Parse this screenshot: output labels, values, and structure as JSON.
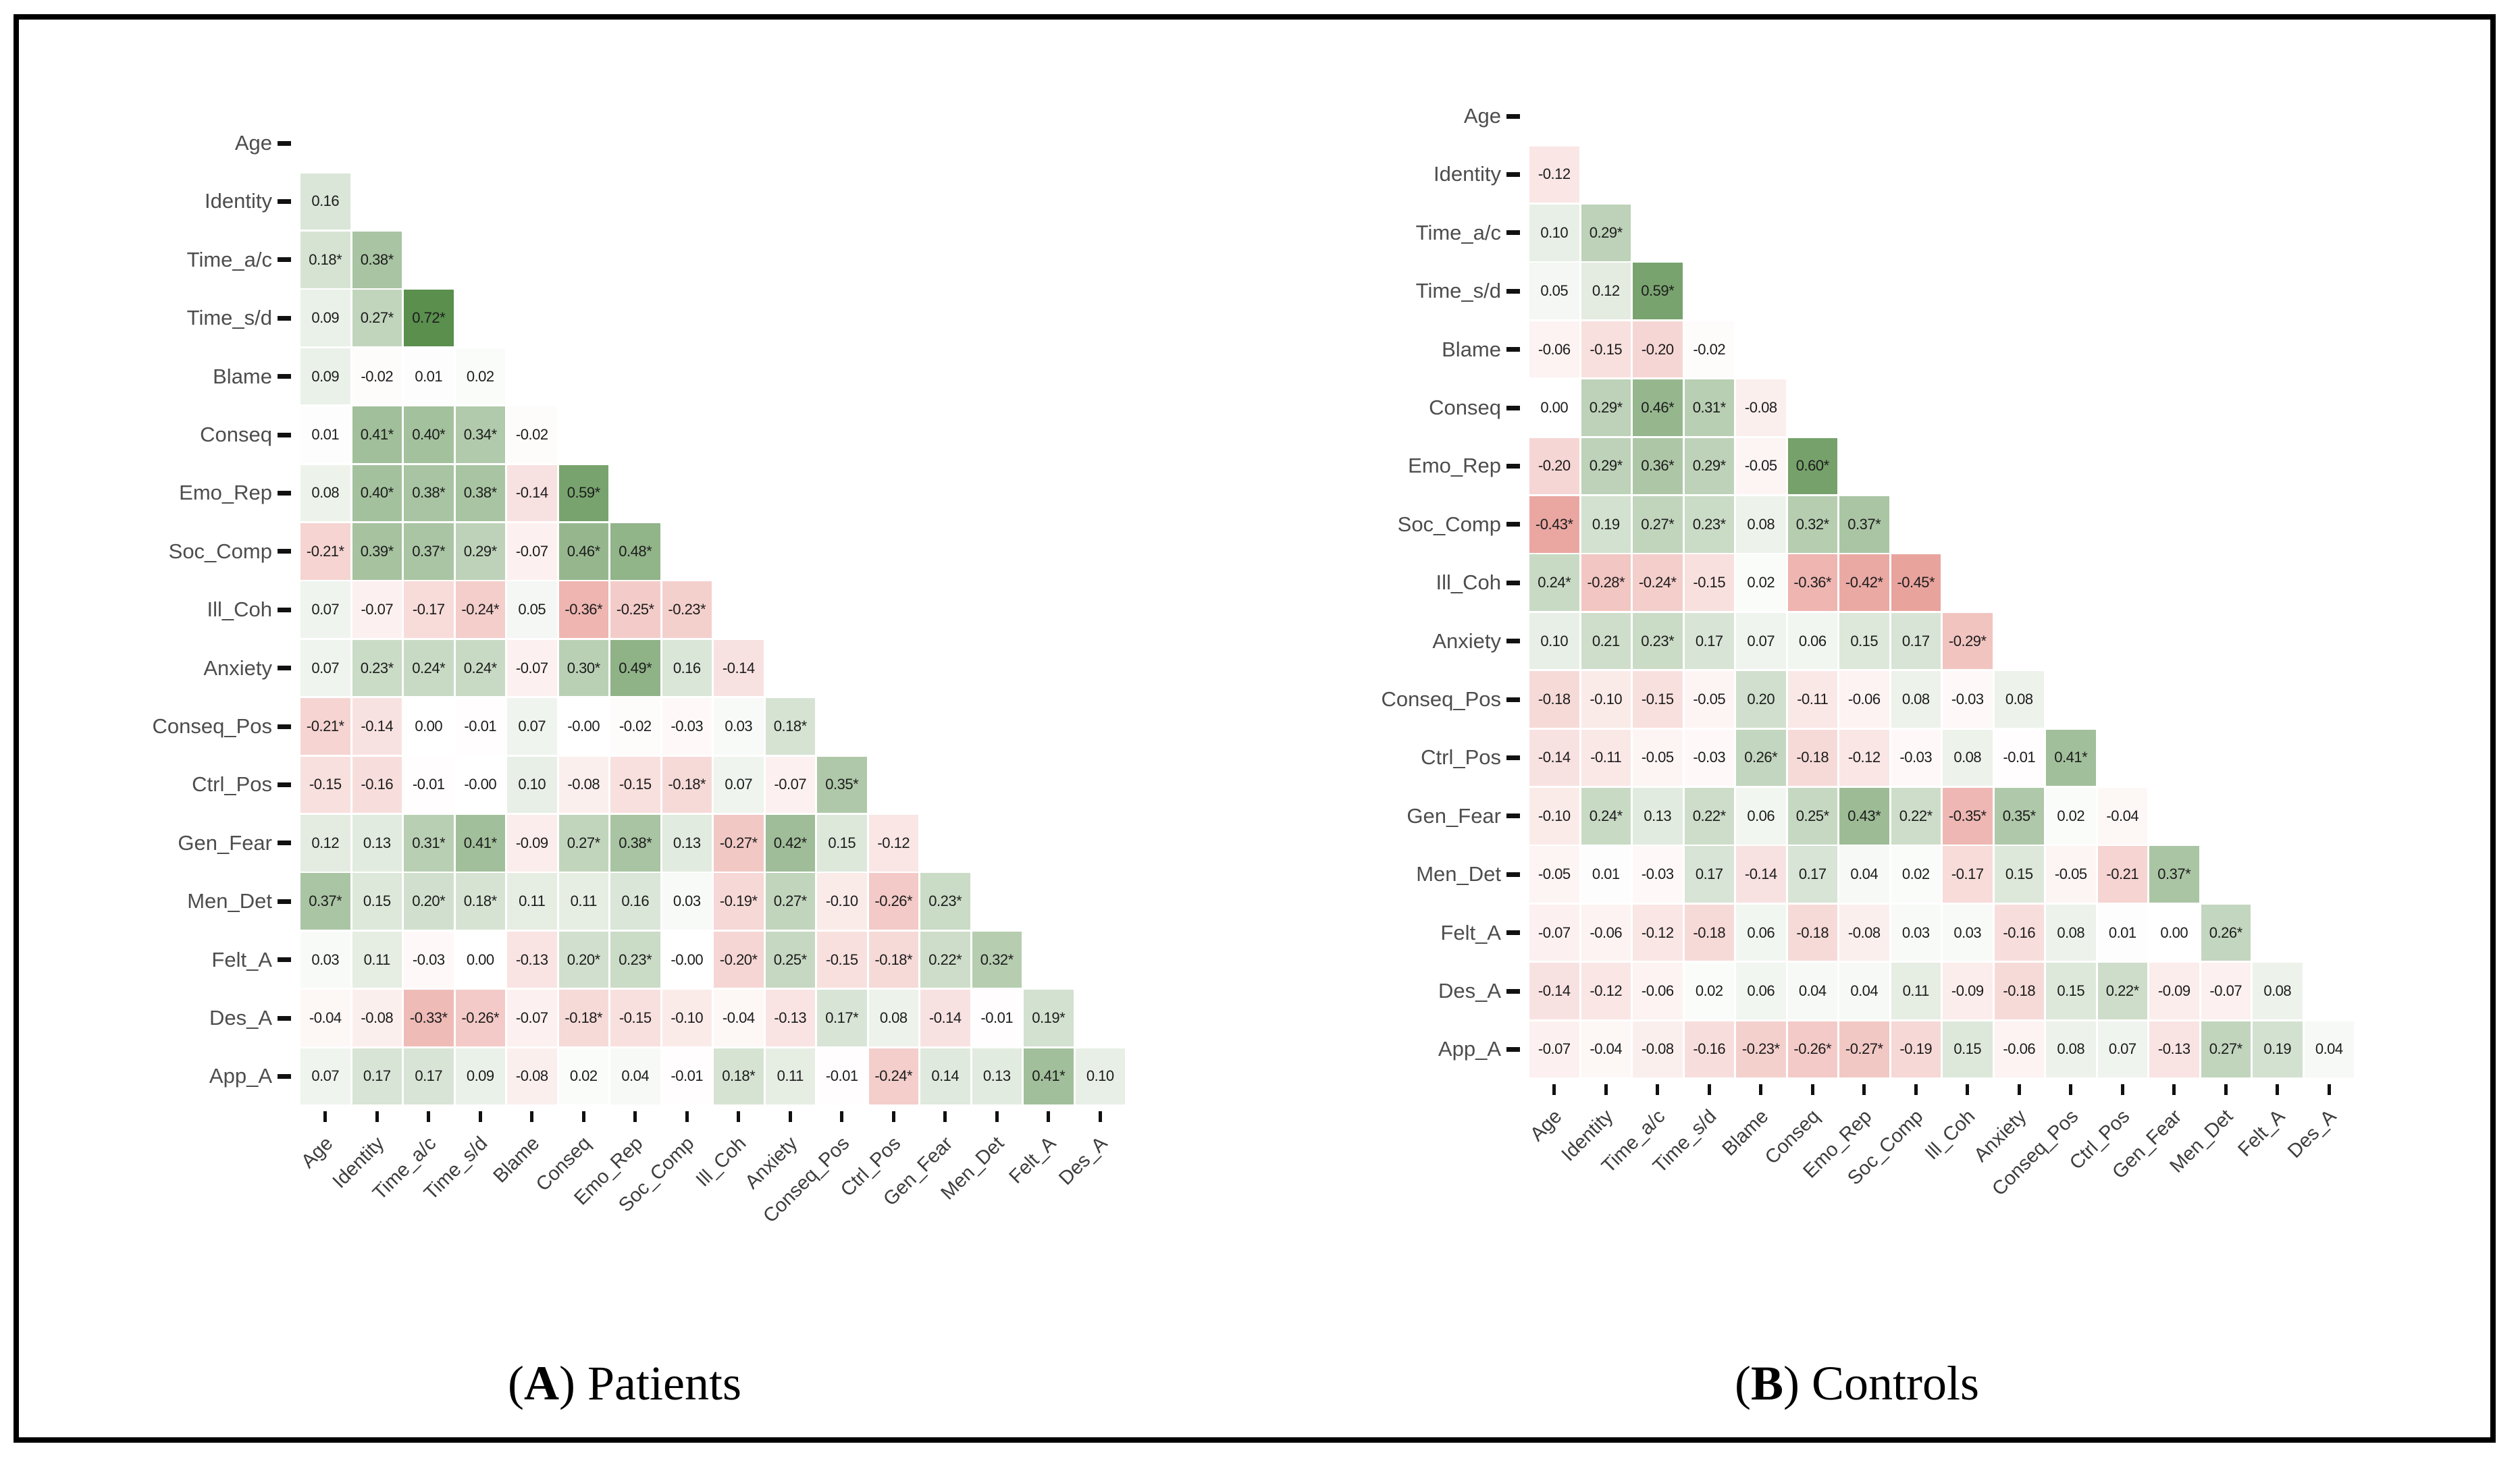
{
  "figure": {
    "open_paren": "(",
    "close_paren": ") ",
    "colors": {
      "positive_end": "#1a6309",
      "negative_end": "#cf3226",
      "strong_positive_sample": "#5a8f4e",
      "strong_negative_sample": "#eba9a4",
      "frame": "#000000",
      "cell_text": "#1c1c1c",
      "axis_label_text": "#4d4d4d"
    }
  },
  "chart_data": [
    {
      "type": "heatmap",
      "subtype": "lower-triangular-correlogram",
      "caption_letter": "A",
      "caption_label": "Patients",
      "legend_position": "none",
      "grid": false,
      "value_range": [
        -1,
        1
      ],
      "significance_marker": "*",
      "y_labels": [
        "Age",
        "Identity",
        "Time_a/c",
        "Time_s/d",
        "Blame",
        "Conseq",
        "Emo_Rep",
        "Soc_Comp",
        "Ill_Coh",
        "Anxiety",
        "Conseq_Pos",
        "Ctrl_Pos",
        "Gen_Fear",
        "Men_Det",
        "Felt_A",
        "Des_A",
        "App_A"
      ],
      "x_labels": [
        "Age",
        "Identity",
        "Time_a/c",
        "Time_s/d",
        "Blame",
        "Conseq",
        "Emo_Rep",
        "Soc_Comp",
        "Ill_Coh",
        "Anxiety",
        "Conseq_Pos",
        "Ctrl_Pos",
        "Gen_Fear",
        "Men_Det",
        "Felt_A",
        "Des_A"
      ],
      "rows": [
        [],
        [
          "0.16"
        ],
        [
          "0.18*",
          "0.38*"
        ],
        [
          "0.09",
          "0.27*",
          "0.72*"
        ],
        [
          "0.09",
          "-0.02",
          "0.01",
          "0.02"
        ],
        [
          "0.01",
          "0.41*",
          "0.40*",
          "0.34*",
          "-0.02"
        ],
        [
          "0.08",
          "0.40*",
          "0.38*",
          "0.38*",
          "-0.14",
          "0.59*"
        ],
        [
          "-0.21*",
          "0.39*",
          "0.37*",
          "0.29*",
          "-0.07",
          "0.46*",
          "0.48*"
        ],
        [
          "0.07",
          "-0.07",
          "-0.17",
          "-0.24*",
          "0.05",
          "-0.36*",
          "-0.25*",
          "-0.23*"
        ],
        [
          "0.07",
          "0.23*",
          "0.24*",
          "0.24*",
          "-0.07",
          "0.30*",
          "0.49*",
          "0.16",
          "-0.14"
        ],
        [
          "-0.21*",
          "-0.14",
          "0.00",
          "-0.01",
          "0.07",
          "-0.00",
          "-0.02",
          "-0.03",
          "0.03",
          "0.18*"
        ],
        [
          "-0.15",
          "-0.16",
          "-0.01",
          "-0.00",
          "0.10",
          "-0.08",
          "-0.15",
          "-0.18*",
          "0.07",
          "-0.07",
          "0.35*"
        ],
        [
          "0.12",
          "0.13",
          "0.31*",
          "0.41*",
          "-0.09",
          "0.27*",
          "0.38*",
          "0.13",
          "-0.27*",
          "0.42*",
          "0.15",
          "-0.12"
        ],
        [
          "0.37*",
          "0.15",
          "0.20*",
          "0.18*",
          "0.11",
          "0.11",
          "0.16",
          "0.03",
          "-0.19*",
          "0.27*",
          "-0.10",
          "-0.26*",
          "0.23*"
        ],
        [
          "0.03",
          "0.11",
          "-0.03",
          "0.00",
          "-0.13",
          "0.20*",
          "0.23*",
          "-0.00",
          "-0.20*",
          "0.25*",
          "-0.15",
          "-0.18*",
          "0.22*",
          "0.32*"
        ],
        [
          "-0.04",
          "-0.08",
          "-0.33*",
          "-0.26*",
          "-0.07",
          "-0.18*",
          "-0.15",
          "-0.10",
          "-0.04",
          "-0.13",
          "0.17*",
          "0.08",
          "-0.14",
          "-0.01",
          "0.19*"
        ],
        [
          "0.07",
          "0.17",
          "0.17",
          "0.09",
          "-0.08",
          "0.02",
          "0.04",
          "-0.01",
          "0.18*",
          "0.11",
          "-0.01",
          "-0.24*",
          "0.14",
          "0.13",
          "0.41*",
          "0.10"
        ]
      ]
    },
    {
      "type": "heatmap",
      "subtype": "lower-triangular-correlogram",
      "caption_letter": "B",
      "caption_label": "Controls",
      "legend_position": "none",
      "grid": false,
      "value_range": [
        -1,
        1
      ],
      "significance_marker": "*",
      "y_labels": [
        "Age",
        "Identity",
        "Time_a/c",
        "Time_s/d",
        "Blame",
        "Conseq",
        "Emo_Rep",
        "Soc_Comp",
        "Ill_Coh",
        "Anxiety",
        "Conseq_Pos",
        "Ctrl_Pos",
        "Gen_Fear",
        "Men_Det",
        "Felt_A",
        "Des_A",
        "App_A"
      ],
      "x_labels": [
        "Age",
        "Identity",
        "Time_a/c",
        "Time_s/d",
        "Blame",
        "Conseq",
        "Emo_Rep",
        "Soc_Comp",
        "Ill_Coh",
        "Anxiety",
        "Conseq_Pos",
        "Ctrl_Pos",
        "Gen_Fear",
        "Men_Det",
        "Felt_A",
        "Des_A"
      ],
      "rows": [
        [],
        [
          "-0.12"
        ],
        [
          "0.10",
          "0.29*"
        ],
        [
          "0.05",
          "0.12",
          "0.59*"
        ],
        [
          "-0.06",
          "-0.15",
          "-0.20",
          "-0.02"
        ],
        [
          "0.00",
          "0.29*",
          "0.46*",
          "0.31*",
          "-0.08"
        ],
        [
          "-0.20",
          "0.29*",
          "0.36*",
          "0.29*",
          "-0.05",
          "0.60*"
        ],
        [
          "-0.43*",
          "0.19",
          "0.27*",
          "0.23*",
          "0.08",
          "0.32*",
          "0.37*"
        ],
        [
          "0.24*",
          "-0.28*",
          "-0.24*",
          "-0.15",
          "0.02",
          "-0.36*",
          "-0.42*",
          "-0.45*"
        ],
        [
          "0.10",
          "0.21",
          "0.23*",
          "0.17",
          "0.07",
          "0.06",
          "0.15",
          "0.17",
          "-0.29*"
        ],
        [
          "-0.18",
          "-0.10",
          "-0.15",
          "-0.05",
          "0.20",
          "-0.11",
          "-0.06",
          "0.08",
          "-0.03",
          "0.08"
        ],
        [
          "-0.14",
          "-0.11",
          "-0.05",
          "-0.03",
          "0.26*",
          "-0.18",
          "-0.12",
          "-0.03",
          "0.08",
          "-0.01",
          "0.41*"
        ],
        [
          "-0.10",
          "0.24*",
          "0.13",
          "0.22*",
          "0.06",
          "0.25*",
          "0.43*",
          "0.22*",
          "-0.35*",
          "0.35*",
          "0.02",
          "-0.04"
        ],
        [
          "-0.05",
          "0.01",
          "-0.03",
          "0.17",
          "-0.14",
          "0.17",
          "0.04",
          "0.02",
          "-0.17",
          "0.15",
          "-0.05",
          "-0.21",
          "0.37*"
        ],
        [
          "-0.07",
          "-0.06",
          "-0.12",
          "-0.18",
          "0.06",
          "-0.18",
          "-0.08",
          "0.03",
          "0.03",
          "-0.16",
          "0.08",
          "0.01",
          "0.00",
          "0.26*"
        ],
        [
          "-0.14",
          "-0.12",
          "-0.06",
          "0.02",
          "0.06",
          "0.04",
          "0.04",
          "0.11",
          "-0.09",
          "-0.18",
          "0.15",
          "0.22*",
          "-0.09",
          "-0.07",
          "0.08"
        ],
        [
          "-0.07",
          "-0.04",
          "-0.08",
          "-0.16",
          "-0.23*",
          "-0.26*",
          "-0.27*",
          "-0.19",
          "0.15",
          "-0.06",
          "0.08",
          "0.07",
          "-0.13",
          "0.27*",
          "0.19",
          "0.04"
        ]
      ]
    }
  ]
}
